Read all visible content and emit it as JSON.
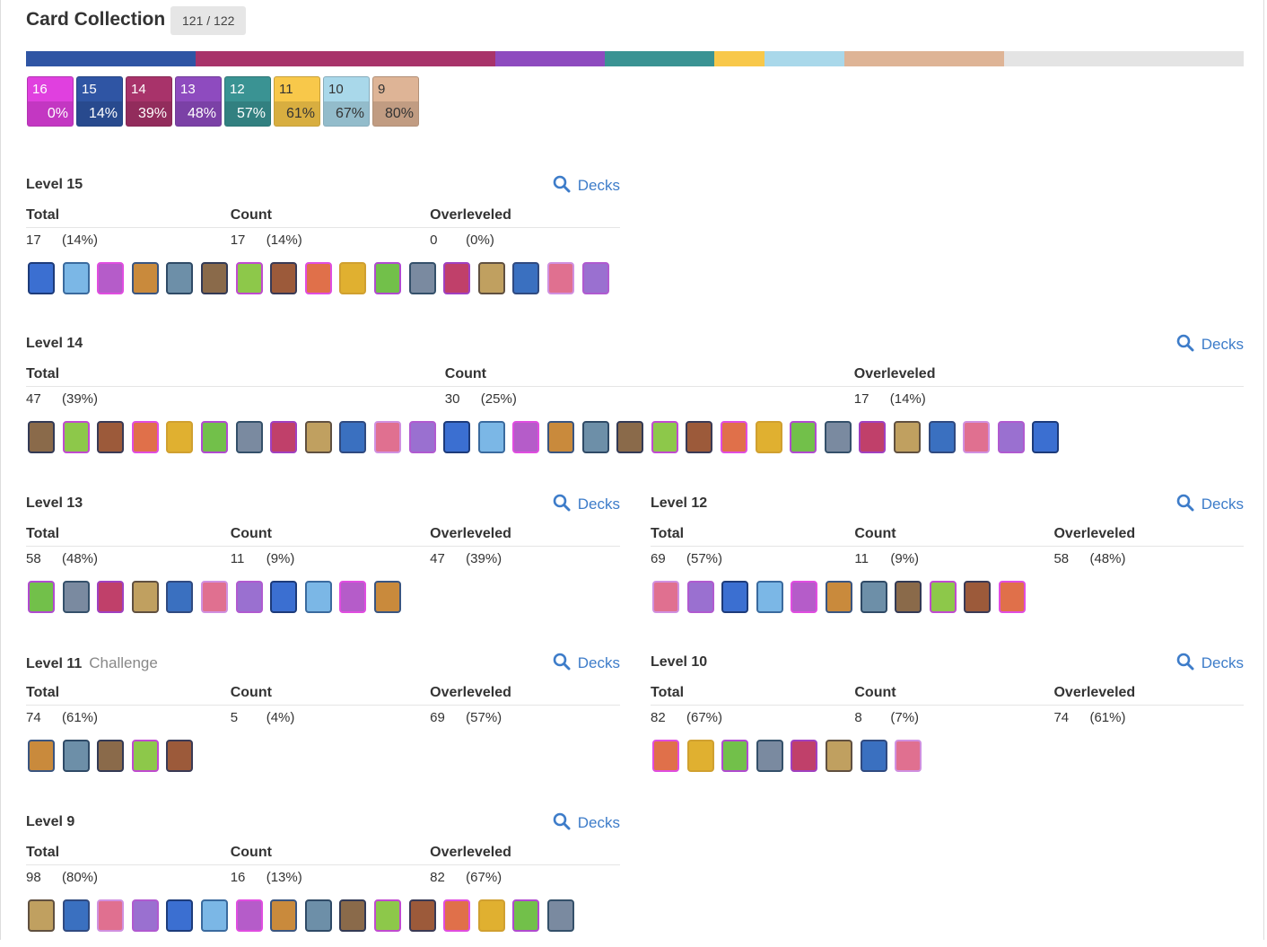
{
  "header": {
    "title": "Card Collection",
    "owned": 121,
    "total": 122
  },
  "levels": [
    {
      "level": 16,
      "percent": "0%",
      "color": "#e040df"
    },
    {
      "level": 15,
      "percent": "14%",
      "color": "#2f55a4"
    },
    {
      "level": 14,
      "percent": "39%",
      "color": "#a8336a"
    },
    {
      "level": 13,
      "percent": "48%",
      "color": "#8e4bbf"
    },
    {
      "level": 12,
      "percent": "57%",
      "color": "#3a9393"
    },
    {
      "level": 11,
      "percent": "61%",
      "color": "#f8c84a"
    },
    {
      "level": 10,
      "percent": "67%",
      "color": "#a9d8ea"
    },
    {
      "level": 9,
      "percent": "80%",
      "color": "#deb496"
    }
  ],
  "columns": [
    "Total",
    "Count",
    "Overleveled"
  ],
  "decks_label": "Decks",
  "sections": [
    {
      "title": "Level 15",
      "color": "#2f55a4",
      "total": 17,
      "total_pct": "(14%)",
      "count": 17,
      "count_pct": "(14%)",
      "overleveled": 0,
      "overleveled_pct": "(0%)"
    },
    {
      "title": "Level 14",
      "color": "#a8336a",
      "total": 47,
      "total_pct": "(39%)",
      "count": 30,
      "count_pct": "(25%)",
      "overleveled": 17,
      "overleveled_pct": "(14%)"
    },
    {
      "title": "Level 13",
      "color": "#8e4bbf",
      "total": 58,
      "total_pct": "(48%)",
      "count": 11,
      "count_pct": "(9%)",
      "overleveled": 47,
      "overleveled_pct": "(39%)"
    },
    {
      "title": "Level 12",
      "color": "#3a9393",
      "total": 69,
      "total_pct": "(57%)",
      "count": 11,
      "count_pct": "(9%)",
      "overleveled": 58,
      "overleveled_pct": "(48%)"
    },
    {
      "title": "Level 11",
      "tag": "Challenge",
      "color": "#f8c84a",
      "total": 74,
      "total_pct": "(61%)",
      "count": 5,
      "count_pct": "(4%)",
      "overleveled": 69,
      "overleveled_pct": "(57%)"
    },
    {
      "title": "Level 10",
      "color": "#a9d8ea",
      "total": 82,
      "total_pct": "(67%)",
      "count": 8,
      "count_pct": "(7%)",
      "overleveled": 74,
      "overleveled_pct": "(61%)"
    },
    {
      "title": "Level 9",
      "color": "#deb496",
      "total": 98,
      "total_pct": "(80%)",
      "count": 16,
      "count_pct": "(13%)",
      "overleveled": 82,
      "overleveled_pct": "(67%)"
    }
  ]
}
